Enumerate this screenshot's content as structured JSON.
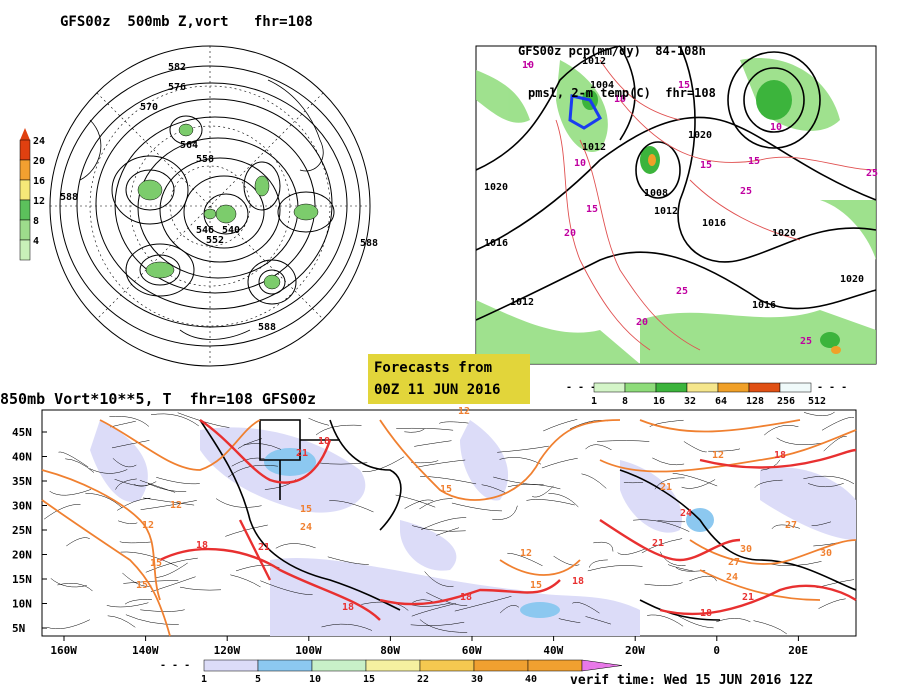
{
  "panel1": {
    "title": "GFS00z  500mb Z,vort   fhr=108",
    "colorbar_ticks": [
      "24",
      "20",
      "16",
      "12",
      "8",
      "4"
    ],
    "colorbar_colors": [
      "#e04010",
      "#f2a030",
      "#f5e878",
      "#5cc05c",
      "#9ddc8c",
      "#c8f0b8"
    ],
    "contour_labels": [
      "582",
      "576",
      "570",
      "564",
      "558",
      "552",
      "588",
      "546",
      "540"
    ]
  },
  "panel2": {
    "title_line1": "GFS00z pcp(mm/dy)  84-108h",
    "title_line2": "pmsl, 2-m temp(C)  fhr=108",
    "colorbar_ticks": [
      "1",
      "8",
      "16",
      "32",
      "64",
      "128",
      "256",
      "512"
    ],
    "colorbar_colors": [
      "#d4f5c8",
      "#8edc7a",
      "#3cb43c",
      "#f5e68c",
      "#f0a028",
      "#e05014",
      "#f0fafa"
    ],
    "isobar_labels": [
      "1020",
      "1016",
      "1012",
      "1008",
      "1004"
    ],
    "temp_labels": [
      "10",
      "15",
      "20",
      "25"
    ]
  },
  "stamp": {
    "line1": "Forecasts from",
    "line2": "00Z 11 JUN 2016"
  },
  "panel3": {
    "title": "850mb Vort*10**5, T  fhr=108 GFS00z",
    "lat_labels": [
      "45N",
      "40N",
      "35N",
      "30N",
      "25N",
      "20N",
      "15N",
      "10N",
      "5N"
    ],
    "lon_labels": [
      "160W",
      "140W",
      "120W",
      "100W",
      "80W",
      "60W",
      "40W",
      "20W",
      "0",
      "20E"
    ],
    "temp_labels": [
      "15",
      "18",
      "21",
      "24",
      "27",
      "30",
      "12"
    ],
    "colorbar_ticks": [
      "1",
      "5",
      "10",
      "15",
      "22",
      "30",
      "40"
    ],
    "colorbar_colors": [
      "#dcdcf8",
      "#8cc8f0",
      "#c8f0c8",
      "#f5f0a0",
      "#f5c850",
      "#f0a030",
      "#f0a030",
      "#e878e8"
    ]
  },
  "verif": "verif time: Wed 15 JUN 2016 12Z"
}
